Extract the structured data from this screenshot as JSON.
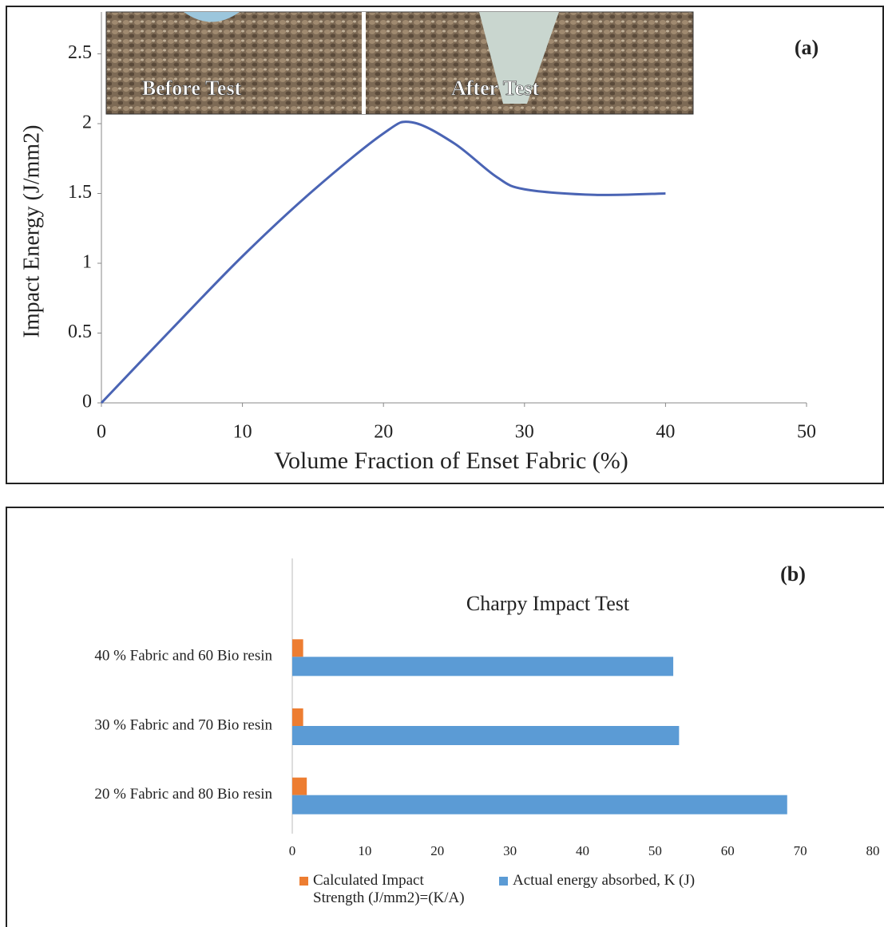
{
  "chart_data": [
    {
      "type": "line",
      "panel_label": "(a)",
      "x_label": "Volume Fraction of  Enset Fabric (%)",
      "y_label": "Impact Energy  (J/mm2)",
      "annotations": [
        "Before Test",
        "After Test"
      ],
      "x": [
        0,
        5,
        10,
        15,
        20,
        22,
        25,
        28,
        30,
        35,
        40
      ],
      "values": [
        0,
        0.53,
        1.05,
        1.52,
        1.93,
        2.01,
        1.86,
        1.62,
        1.53,
        1.49,
        1.5
      ],
      "color": "#4a64b4",
      "xlim": [
        0,
        50
      ],
      "xticks": [
        0,
        10,
        20,
        30,
        40,
        50
      ],
      "ylim": [
        0,
        2.8
      ],
      "yticks": [
        0,
        0.5,
        1,
        1.5,
        2,
        2.5
      ],
      "grid": false
    },
    {
      "type": "hbar",
      "panel_label": "(b)",
      "title": "Charpy Impact Test",
      "categories": [
        "20 % Fabric and 80 Bio resin",
        "30 % Fabric and 70 Bio resin",
        "40 % Fabric and 60 Bio resin"
      ],
      "series": [
        {
          "name": "Calculated Impact Strength (J/mm2)=(K/A)",
          "color": "#ed7d31",
          "values": [
            2,
            1.5,
            1.5
          ]
        },
        {
          "name": "Actual energy absorbed, K (J)",
          "color": "#5b9bd5",
          "values": [
            68.2,
            53.3,
            52.5
          ]
        }
      ],
      "xlim": [
        0,
        80
      ],
      "xticks": [
        0,
        10,
        20,
        30,
        40,
        50,
        60,
        70,
        80
      ],
      "grid": false
    }
  ]
}
